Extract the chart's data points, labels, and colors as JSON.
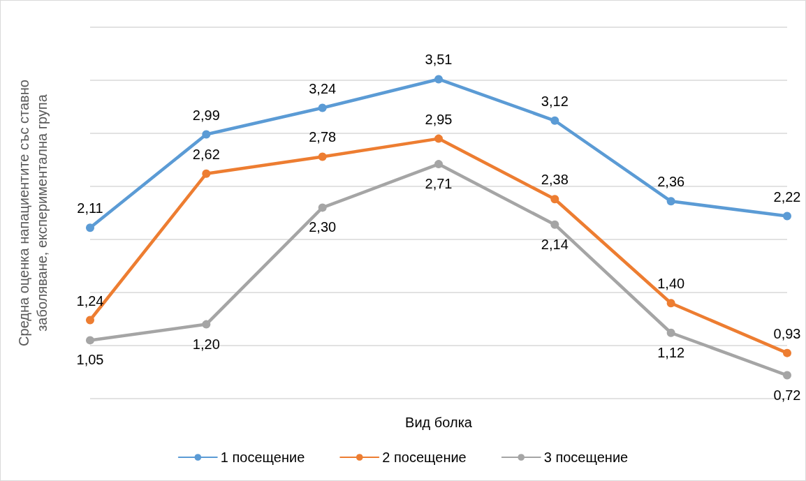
{
  "chart_data": {
    "type": "line",
    "ylabel": "Средна оценка напациентите със ставно заболяване, експериментална група",
    "xlabel": "Вид болка",
    "categories": [
      null,
      null,
      null,
      null,
      null,
      null,
      null
    ],
    "series": [
      {
        "name": "1 посещение",
        "color": "#5b9bd5",
        "values": [
          2.11,
          2.99,
          3.24,
          3.51,
          3.12,
          2.36,
          2.22
        ],
        "value_labels": [
          "2,11",
          "2,99",
          "3,24",
          "3,51",
          "3,12",
          "2,36",
          "2,22"
        ]
      },
      {
        "name": "2 посещение",
        "color": "#ed7d31",
        "values": [
          1.24,
          2.62,
          2.78,
          2.95,
          2.38,
          1.4,
          0.93
        ],
        "value_labels": [
          "1,24",
          "2,62",
          "2,78",
          "2,95",
          "2,38",
          "1,40",
          "0,93"
        ]
      },
      {
        "name": "3 посещение",
        "color": "#a5a5a5",
        "values": [
          1.05,
          1.2,
          2.3,
          2.71,
          2.14,
          1.12,
          0.72
        ],
        "value_labels": [
          "1,05",
          "1,20",
          "2,30",
          "2,71",
          "2,14",
          "1,12",
          "0,72"
        ]
      }
    ],
    "ylim": [
      0.5,
      4
    ],
    "yticks": [
      0.5,
      1,
      1.5,
      2,
      2.5,
      3,
      3.5,
      4
    ],
    "grid": "y",
    "legend": "bottom",
    "tick_labels": false,
    "marker": "circle"
  }
}
